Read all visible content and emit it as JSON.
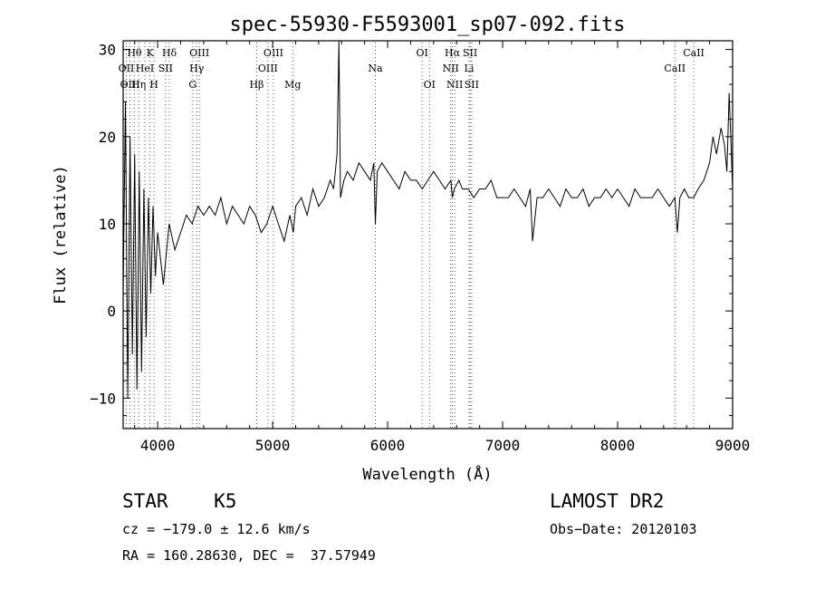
{
  "chart_data": {
    "type": "line",
    "title": "spec-55930-F5593001_sp07-092.fits",
    "xlabel": "Wavelength (Å)",
    "ylabel": "Flux (relative)",
    "xlim": [
      3700,
      9000
    ],
    "ylim": [
      -13.5,
      31
    ],
    "xticks": [
      4000,
      5000,
      6000,
      7000,
      8000,
      9000
    ],
    "yticks": [
      -10,
      0,
      10,
      20,
      30
    ],
    "grid": false,
    "series": [
      {
        "x": [
          3700,
          3720,
          3740,
          3760,
          3780,
          3800,
          3820,
          3840,
          3860,
          3880,
          3900,
          3920,
          3940,
          3960,
          3980,
          4000,
          4050,
          4100,
          4150,
          4200,
          4250,
          4300,
          4350,
          4400,
          4450,
          4500,
          4550,
          4600,
          4650,
          4700,
          4750,
          4800,
          4850,
          4900,
          4950,
          5000,
          5050,
          5100,
          5150,
          5180,
          5200,
          5250,
          5300,
          5350,
          5400,
          5450,
          5500,
          5530,
          5560,
          5577,
          5590,
          5620,
          5650,
          5700,
          5750,
          5800,
          5850,
          5880,
          5893,
          5910,
          5950,
          6000,
          6050,
          6100,
          6150,
          6200,
          6250,
          6300,
          6350,
          6400,
          6450,
          6500,
          6550,
          6563,
          6580,
          6620,
          6650,
          6700,
          6750,
          6800,
          6850,
          6900,
          6950,
          7000,
          7050,
          7100,
          7150,
          7200,
          7240,
          7260,
          7300,
          7350,
          7400,
          7450,
          7500,
          7550,
          7600,
          7650,
          7700,
          7750,
          7800,
          7850,
          7900,
          7950,
          8000,
          8050,
          8100,
          8150,
          8200,
          8250,
          8300,
          8350,
          8400,
          8450,
          8498,
          8520,
          8542,
          8580,
          8620,
          8662,
          8700,
          8750,
          8800,
          8830,
          8860,
          8900,
          8930,
          8950,
          8970,
          9000
        ],
        "y": [
          2,
          24,
          -10,
          20,
          -5,
          18,
          -9,
          16,
          -7,
          14,
          -3,
          13,
          2,
          12,
          4,
          9,
          3,
          10,
          7,
          9,
          11,
          10,
          12,
          11,
          12,
          11,
          13,
          10,
          12,
          11,
          10,
          12,
          11,
          9,
          10,
          12,
          10,
          8,
          11,
          9,
          12,
          13,
          11,
          14,
          12,
          13,
          15,
          14,
          18,
          31,
          13,
          15,
          16,
          15,
          17,
          16,
          15,
          17,
          10,
          16,
          17,
          16,
          15,
          14,
          16,
          15,
          15,
          14,
          15,
          16,
          15,
          14,
          15,
          13,
          14,
          15,
          14,
          14,
          13,
          14,
          14,
          15,
          13,
          13,
          13,
          14,
          13,
          12,
          14,
          8,
          13,
          13,
          14,
          13,
          12,
          14,
          13,
          13,
          14,
          12,
          13,
          13,
          14,
          13,
          14,
          13,
          12,
          14,
          13,
          13,
          13,
          14,
          13,
          12,
          13,
          9,
          13,
          14,
          13,
          13,
          14,
          15,
          17,
          20,
          18,
          21,
          19,
          16,
          25,
          14
        ]
      }
    ],
    "lines": [
      {
        "label": "Hθ",
        "wavelength": 3798,
        "row": 0
      },
      {
        "label": "K",
        "wavelength": 3934,
        "row": 0
      },
      {
        "label": "Hδ",
        "wavelength": 4102,
        "row": 0
      },
      {
        "label": "OIII",
        "wavelength": 4363,
        "row": 0
      },
      {
        "label": "OIII",
        "wavelength": 5007,
        "row": 0
      },
      {
        "label": "OI",
        "wavelength": 6300,
        "row": 0
      },
      {
        "label": "Hα",
        "wavelength": 6563,
        "row": 0
      },
      {
        "label": "SII",
        "wavelength": 6717,
        "row": 0
      },
      {
        "label": "CaII",
        "wavelength": 8662,
        "row": 0
      },
      {
        "label": "OII",
        "wavelength": 3727,
        "row": 1
      },
      {
        "label": "HeI",
        "wavelength": 3889,
        "row": 1
      },
      {
        "label": "SII",
        "wavelength": 4069,
        "row": 1
      },
      {
        "label": "Hγ",
        "wavelength": 4340,
        "row": 1
      },
      {
        "label": "OIII",
        "wavelength": 4959,
        "row": 1
      },
      {
        "label": "Na",
        "wavelength": 5893,
        "row": 1
      },
      {
        "label": "NII",
        "wavelength": 6548,
        "row": 1
      },
      {
        "label": "Li",
        "wavelength": 6708,
        "row": 1
      },
      {
        "label": "CaII",
        "wavelength": 8498,
        "row": 1
      },
      {
        "label": "OIII",
        "wavelength": 3760,
        "row": 2
      },
      {
        "label": "Hη",
        "wavelength": 3835,
        "row": 2
      },
      {
        "label": "H",
        "wavelength": 3968,
        "row": 2
      },
      {
        "label": "G",
        "wavelength": 4305,
        "row": 2
      },
      {
        "label": "Hβ",
        "wavelength": 4861,
        "row": 2
      },
      {
        "label": "Mg",
        "wavelength": 5175,
        "row": 2
      },
      {
        "label": "OI",
        "wavelength": 6364,
        "row": 2
      },
      {
        "label": "NII",
        "wavelength": 6584,
        "row": 2
      },
      {
        "label": "SII",
        "wavelength": 6731,
        "row": 2
      }
    ],
    "line_color": "#000000",
    "marker_color": "#d92020"
  },
  "info": {
    "object": "STAR    K5",
    "survey": "LAMOST DR2",
    "cz": "cz = −179.0 ± 12.6 km/s",
    "obs_date": "Obs−Date: 20120103",
    "radec": "RA = 160.28630, DEC =  37.57949"
  }
}
